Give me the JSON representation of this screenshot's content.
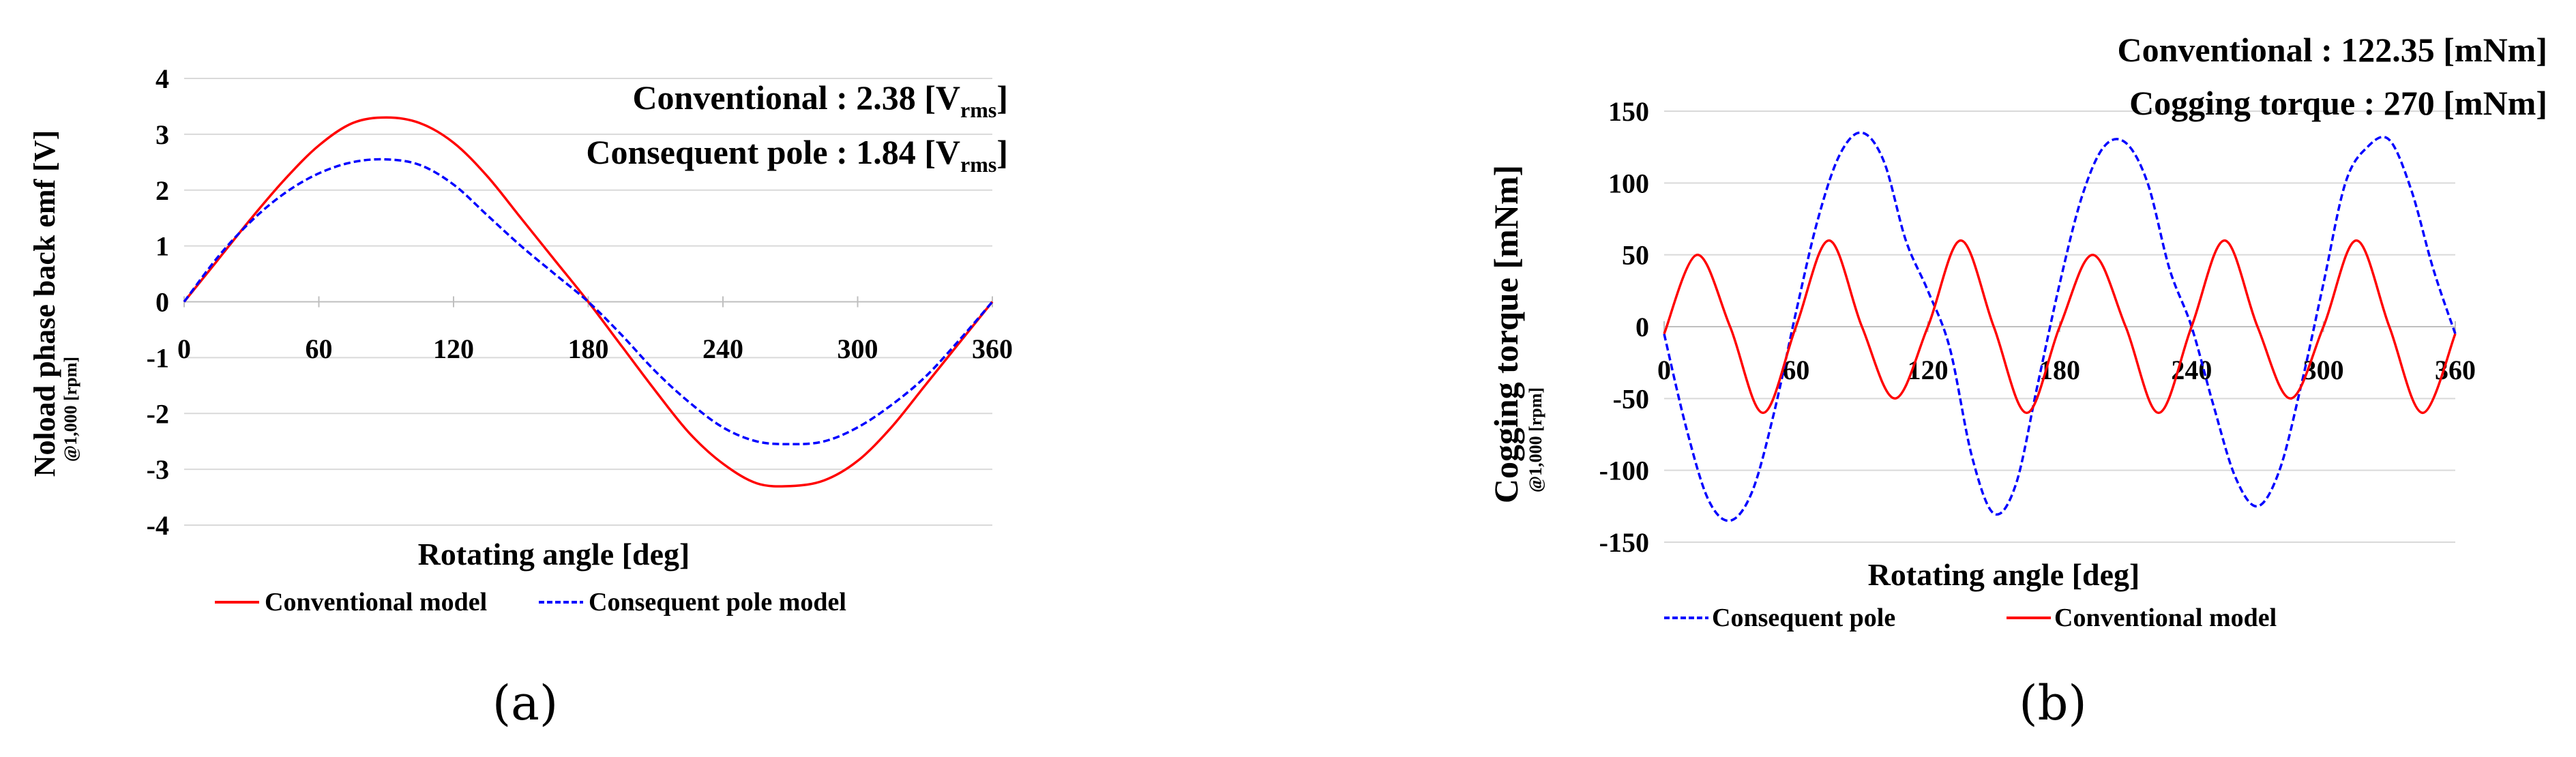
{
  "chart_data": [
    {
      "type": "line",
      "panel_label": "(a)",
      "xlabel": "Rotating angle [deg]",
      "ylabel": "Noload phase back emf  [V]",
      "ylabel_sub": "@1,000 [rpm]",
      "xlim": [
        0,
        360
      ],
      "ylim": [
        -4,
        4
      ],
      "x_ticks": [
        "0",
        "60",
        "120",
        "180",
        "240",
        "300",
        "360"
      ],
      "y_ticks": [
        "4",
        "3",
        "2",
        "1",
        "0",
        "-1",
        "-2",
        "-3",
        "-4"
      ],
      "grid": "horizontal",
      "legend_position": "bottom",
      "annotations": [
        {
          "main": "Conventional : 2.38 [V",
          "sub": "rms",
          "end": "]"
        },
        {
          "main": "Consequent pole : 1.84 [V",
          "sub": "rms",
          "end": "]"
        }
      ],
      "series": [
        {
          "name": "Conventional model",
          "color": "#ff0000",
          "style": "solid",
          "x": [
            0,
            15,
            30,
            45,
            60,
            75,
            90,
            105,
            120,
            135,
            150,
            165,
            180,
            195,
            210,
            225,
            240,
            255,
            270,
            285,
            300,
            315,
            330,
            345,
            360
          ],
          "y": [
            0.0,
            0.75,
            1.5,
            2.2,
            2.8,
            3.2,
            3.3,
            3.2,
            2.85,
            2.25,
            1.5,
            0.75,
            0.0,
            -0.8,
            -1.6,
            -2.35,
            -2.9,
            -3.25,
            -3.3,
            -3.2,
            -2.85,
            -2.25,
            -1.5,
            -0.75,
            0.0
          ]
        },
        {
          "name": "Consequent pole model",
          "color": "#0000ff",
          "style": "dashed",
          "x": [
            0,
            15,
            30,
            45,
            60,
            75,
            90,
            105,
            120,
            135,
            150,
            165,
            180,
            195,
            210,
            225,
            240,
            255,
            270,
            285,
            300,
            315,
            330,
            345,
            360
          ],
          "y": [
            0.0,
            0.8,
            1.45,
            1.95,
            2.3,
            2.5,
            2.55,
            2.45,
            2.1,
            1.55,
            1.0,
            0.5,
            0.0,
            -0.6,
            -1.25,
            -1.8,
            -2.25,
            -2.5,
            -2.55,
            -2.5,
            -2.25,
            -1.85,
            -1.35,
            -0.7,
            0.0
          ]
        }
      ]
    },
    {
      "type": "line",
      "panel_label": "(b)",
      "xlabel": "Rotating angle [deg]",
      "ylabel": "Cogging torque [mNm]",
      "ylabel_sub": "@1,000 [rpm]",
      "xlim": [
        0,
        360
      ],
      "ylim": [
        -150,
        150
      ],
      "x_ticks": [
        "0",
        "60",
        "120",
        "180",
        "240",
        "300",
        "360"
      ],
      "y_ticks": [
        "150",
        "100",
        "50",
        "0",
        "-50",
        "-100",
        "-150"
      ],
      "grid": "horizontal",
      "legend_position": "bottom",
      "annotations": [
        {
          "main": "Conventional : 122.35 [mNm]",
          "sub": "",
          "end": ""
        },
        {
          "main": "Cogging torque : 270 [mNm]",
          "sub": "",
          "end": ""
        }
      ],
      "series": [
        {
          "name": "Consequent pole",
          "color": "#0000ff",
          "style": "dashed",
          "x": [
            0,
            10,
            20,
            30,
            40,
            50,
            60,
            70,
            80,
            90,
            100,
            110,
            120,
            130,
            140,
            150,
            160,
            170,
            180,
            190,
            200,
            210,
            220,
            230,
            240,
            250,
            260,
            270,
            280,
            290,
            300,
            310,
            320,
            330,
            340,
            350,
            360
          ],
          "y": [
            -5,
            -70,
            -120,
            -135,
            -115,
            -60,
            10,
            75,
            120,
            135,
            115,
            60,
            25,
            -15,
            -90,
            -130,
            -110,
            -40,
            30,
            90,
            125,
            128,
            100,
            40,
            0,
            -55,
            -105,
            -125,
            -100,
            -40,
            30,
            100,
            125,
            130,
            95,
            40,
            -5
          ]
        },
        {
          "name": "Conventional model",
          "color": "#ff0000",
          "style": "solid",
          "x": [
            0,
            15,
            30,
            45,
            60,
            75,
            90,
            105,
            120,
            135,
            150,
            165,
            180,
            195,
            210,
            225,
            240,
            255,
            270,
            285,
            300,
            315,
            330,
            345,
            360
          ],
          "y": [
            -5,
            50,
            0,
            -60,
            0,
            60,
            0,
            -50,
            0,
            60,
            0,
            -60,
            0,
            50,
            0,
            -60,
            0,
            60,
            0,
            -50,
            0,
            60,
            0,
            -60,
            -5
          ]
        }
      ]
    }
  ]
}
